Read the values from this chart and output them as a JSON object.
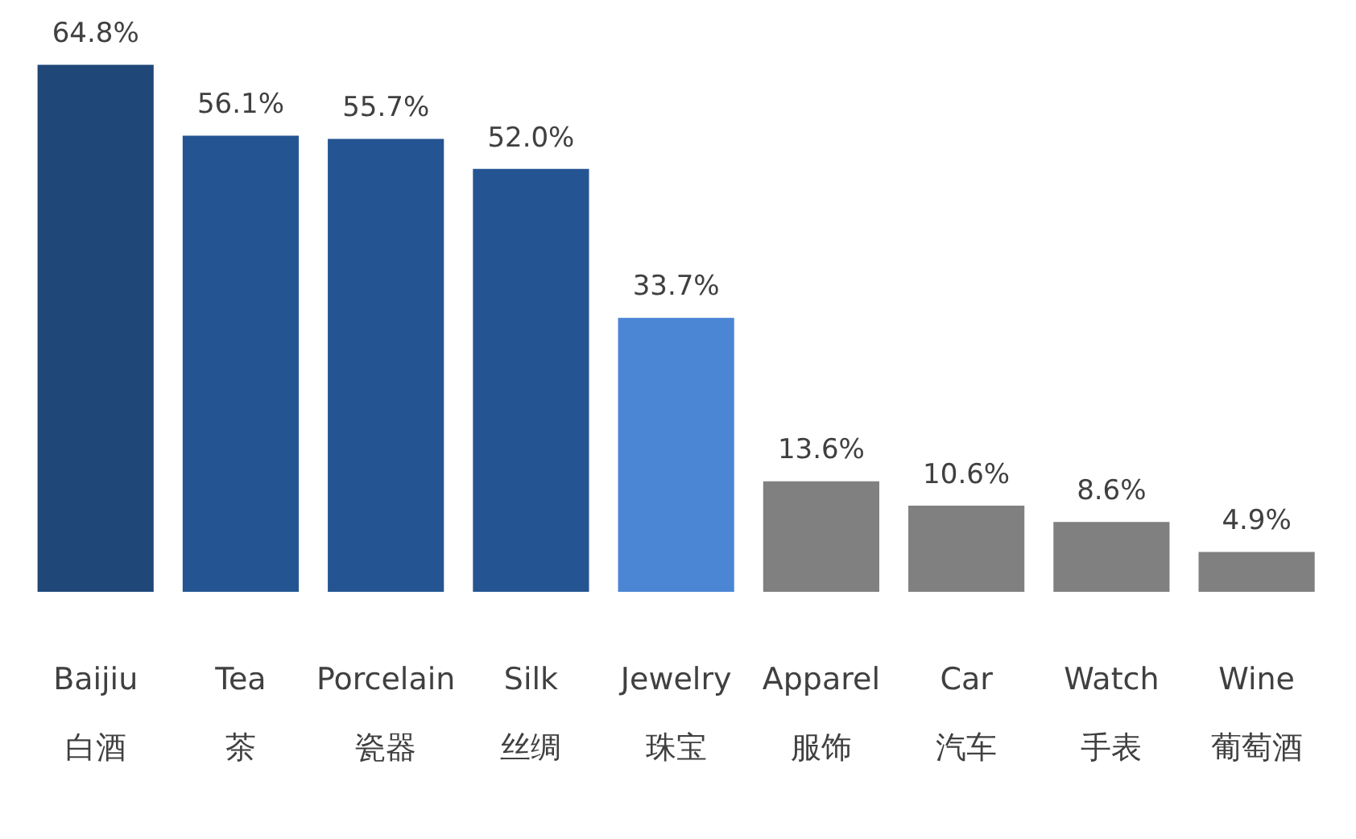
{
  "chart_data": {
    "type": "bar",
    "categories": [
      "Baijiu\n白酒",
      "Tea\n茶",
      "Porcelain\n瓷器",
      "Silk\n丝绸",
      "Jewelry\n珠宝",
      "Apparel\n服饰",
      "Car\n汽车",
      "Watch\n手表",
      "Wine\n葡萄酒"
    ],
    "values": [
      64.8,
      56.1,
      55.7,
      52.0,
      33.7,
      13.6,
      10.6,
      8.6,
      4.9
    ],
    "value_labels": [
      "64.8%",
      "56.1%",
      "55.7%",
      "52.0%",
      "33.7%",
      "13.6%",
      "10.6%",
      "8.6%",
      "4.9%"
    ],
    "colors": [
      "#1f4778",
      "#245592",
      "#245592",
      "#245592",
      "#4a86d4",
      "#808080",
      "#808080",
      "#808080",
      "#808080"
    ],
    "grid": false,
    "legend": false
  }
}
